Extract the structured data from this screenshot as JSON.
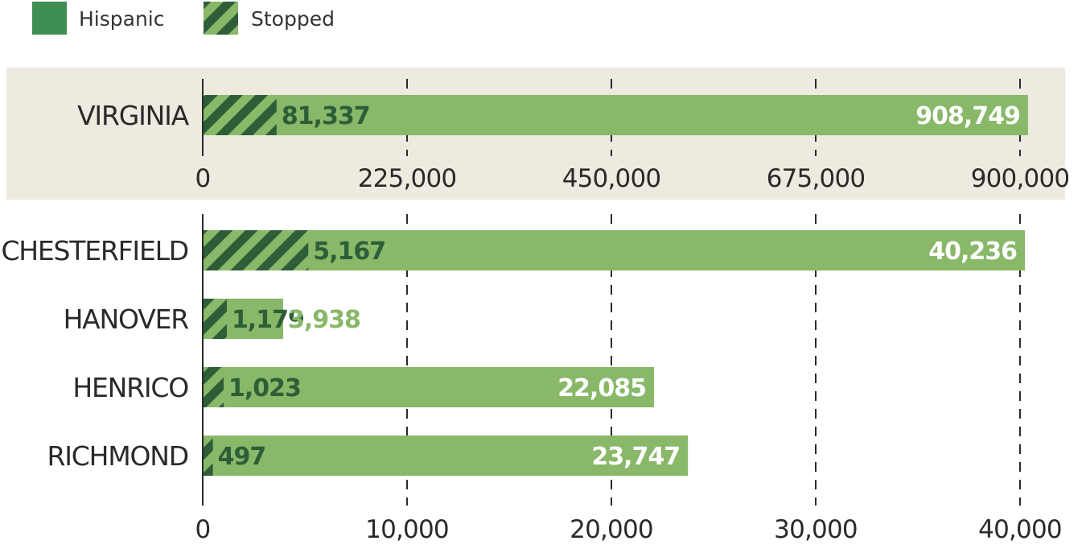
{
  "legend": [
    {
      "label": "Hispanic",
      "color": "#3f8f55",
      "pattern": "solid"
    },
    {
      "label": "Stopped",
      "color": "#2d5e38",
      "pattern": "hatched"
    }
  ],
  "colors": {
    "hispanic_bar": "#88b868",
    "stopped_stripe": "#2d5e38",
    "stopped_bg": "#88b868",
    "inside_total_label": "#ffffff",
    "outside_total_label": "#88b868",
    "stopped_label": "#2d5e38",
    "panel_bg": "#eeeae0",
    "axis": "#2a2a2a"
  },
  "chart_data": [
    {
      "type": "bar",
      "orientation": "horizontal",
      "panel_background": true,
      "categories": [
        "VIRGINIA"
      ],
      "series": [
        {
          "name": "Hispanic",
          "values": [
            908749
          ]
        },
        {
          "name": "Stopped",
          "values": [
            81337
          ]
        }
      ],
      "value_labels": {
        "Hispanic": [
          "908,749"
        ],
        "Stopped": [
          "81,337"
        ]
      },
      "xlim": [
        0,
        900000
      ],
      "xticks": [
        0,
        225000,
        450000,
        675000,
        900000
      ],
      "xtick_labels": [
        "0",
        "225,000",
        "450,000",
        "675,000",
        "900,000"
      ],
      "grid": "dashed-vertical"
    },
    {
      "type": "bar",
      "orientation": "horizontal",
      "panel_background": false,
      "categories": [
        "CHESTERFIELD",
        "HANOVER",
        "HENRICO",
        "RICHMOND"
      ],
      "series": [
        {
          "name": "Hispanic",
          "values": [
            40236,
            3938,
            22085,
            23747
          ]
        },
        {
          "name": "Stopped",
          "values": [
            5167,
            1179,
            1023,
            497
          ]
        }
      ],
      "value_labels": {
        "Hispanic": [
          "40,236",
          "3,938",
          "22,085",
          "23,747"
        ],
        "Stopped": [
          "5,167",
          "1,179",
          "1,023",
          "497"
        ]
      },
      "xlim": [
        0,
        40000
      ],
      "xticks": [
        0,
        10000,
        20000,
        30000,
        40000
      ],
      "xtick_labels": [
        "0",
        "10,000",
        "20,000",
        "30,000",
        "40,000"
      ],
      "grid": "dashed-vertical"
    }
  ]
}
